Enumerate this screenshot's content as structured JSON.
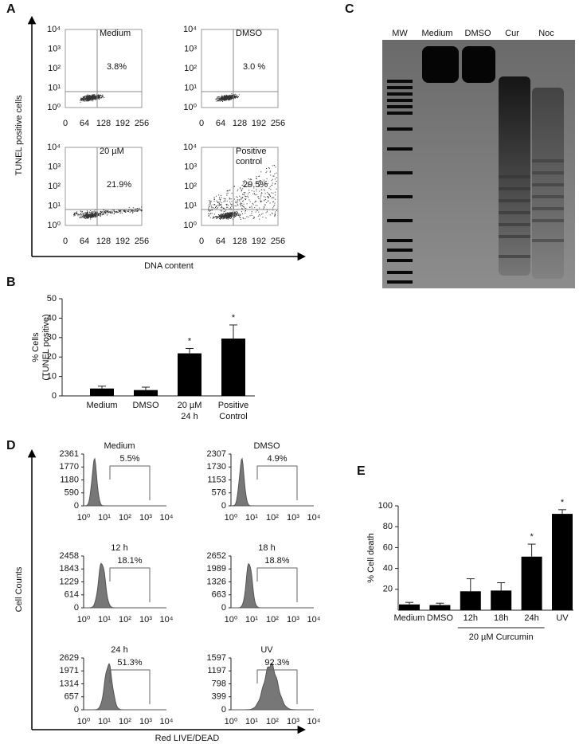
{
  "panel_labels": [
    "A",
    "B",
    "C",
    "D",
    "E"
  ],
  "panel_a": {
    "y_label": "TUNEL positive cells",
    "x_label": "DNA content",
    "xticks": [
      "0",
      "64",
      "128",
      "192",
      "256"
    ],
    "yticks": [
      "10⁴",
      "10³",
      "10²",
      "10¹",
      "10⁰"
    ],
    "plots": [
      {
        "label": [
          "Medium"
        ],
        "value": "3.8%"
      },
      {
        "label": [
          "DMSO"
        ],
        "value": "3.0 %"
      },
      {
        "label": [
          "20 µM"
        ],
        "value": "21.9%"
      },
      {
        "label": [
          "Positive",
          "control"
        ],
        "value": "29.5%"
      }
    ]
  },
  "panel_c": {
    "lanes": [
      "MW",
      "Medium",
      "DMSO",
      "Cur",
      "Noc"
    ]
  },
  "panel_d": {
    "y_label": "Cell Counts",
    "x_label": "Red LIVE/DEAD",
    "xticks": [
      "10⁰",
      "10¹",
      "10²",
      "10³",
      "10⁴"
    ],
    "plots": [
      {
        "label": "Medium",
        "value": "5.5%",
        "yticks": [
          "2361",
          "1770",
          "1180",
          "590",
          "0"
        ]
      },
      {
        "label": "DMSO",
        "value": "4.9%",
        "yticks": [
          "2307",
          "1730",
          "1153",
          "576",
          "0"
        ]
      },
      {
        "label": "12 h",
        "value": "18.1%",
        "yticks": [
          "2458",
          "1843",
          "1229",
          "614",
          "0"
        ]
      },
      {
        "label": "18 h",
        "value": "18.8%",
        "yticks": [
          "2652",
          "1989",
          "1326",
          "663",
          "0"
        ]
      },
      {
        "label": "24 h",
        "value": "51.3%",
        "yticks": [
          "2629",
          "1971",
          "1314",
          "657",
          "0"
        ]
      },
      {
        "label": "UV",
        "value": "92.3%",
        "yticks": [
          "1597",
          "1197",
          "798",
          "399",
          "0"
        ]
      }
    ]
  },
  "chart_data": [
    {
      "type": "bar",
      "y_label": [
        "% Cells",
        "(TUNEL positive)"
      ],
      "categories": [
        [
          "Medium"
        ],
        [
          "DMSO"
        ],
        [
          "20 µM",
          "24 h"
        ],
        [
          "Positive",
          "Control"
        ]
      ],
      "values": [
        3.8,
        3.0,
        21.9,
        29.5
      ],
      "errors": [
        1.2,
        1.5,
        2.5,
        7
      ],
      "significance": [
        null,
        null,
        "*",
        "*"
      ],
      "color": "#000000",
      "ylim": [
        0,
        50
      ],
      "yticks": [
        0,
        10,
        20,
        30,
        40,
        50
      ]
    },
    {
      "type": "bar",
      "y_label": [
        "% Cell death"
      ],
      "group_label": "20 µM Curcumin",
      "categories": [
        "Medium",
        "DMSO",
        "12h",
        "18h",
        "24h",
        "UV"
      ],
      "values": [
        5.5,
        4.9,
        18.1,
        18.8,
        51.3,
        92.3
      ],
      "errors": [
        2,
        1.8,
        12,
        7.5,
        12,
        4
      ],
      "significance": [
        null,
        null,
        null,
        null,
        "*",
        "*"
      ],
      "color": "#000000",
      "ylim": [
        0,
        100
      ],
      "yticks": [
        20,
        40,
        60,
        80,
        100
      ]
    }
  ]
}
